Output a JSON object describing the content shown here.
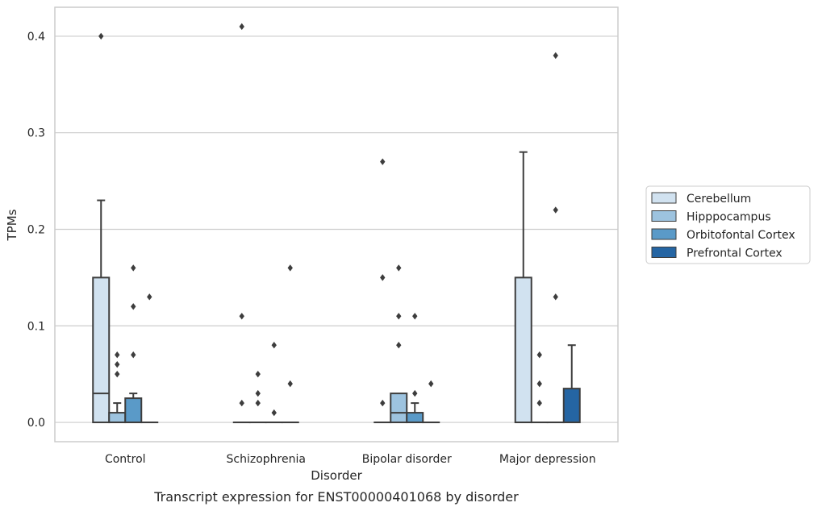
{
  "caption": "Transcript expression for ENST00000401068 by disorder",
  "chart_data": {
    "type": "box",
    "title": "",
    "xlabel": "Disorder",
    "ylabel": "TPMs",
    "ylim": [
      -0.02,
      0.43
    ],
    "yticks": [
      0.0,
      0.1,
      0.2,
      0.3,
      0.4
    ],
    "ytick_labels": [
      "0.0",
      "0.1",
      "0.2",
      "0.3",
      "0.4"
    ],
    "grid": "horizontal",
    "legend_position": "right",
    "categories": [
      "Control",
      "Schizophrenia",
      "Bipolar disorder",
      "Major depression"
    ],
    "series": [
      {
        "name": "Cerebellum",
        "color": "#d1e2f0",
        "boxes": [
          {
            "q1": 0.0,
            "median": 0.03,
            "q3": 0.15,
            "whisker_low": 0.0,
            "whisker_high": 0.23,
            "outliers": [
              0.4
            ]
          },
          {
            "q1": 0.0,
            "median": 0.0,
            "q3": 0.0,
            "whisker_low": 0.0,
            "whisker_high": 0.0,
            "outliers": [
              0.41,
              0.11,
              0.02
            ]
          },
          {
            "q1": 0.0,
            "median": 0.0,
            "q3": 0.0,
            "whisker_low": 0.0,
            "whisker_high": 0.0,
            "outliers": [
              0.27,
              0.15,
              0.02
            ]
          },
          {
            "q1": 0.0,
            "median": 0.0,
            "q3": 0.15,
            "whisker_low": 0.0,
            "whisker_high": 0.28,
            "outliers": []
          }
        ]
      },
      {
        "name": "Hipppocampus",
        "color": "#9dc3df",
        "boxes": [
          {
            "q1": 0.0,
            "median": 0.0,
            "q3": 0.01,
            "whisker_low": 0.0,
            "whisker_high": 0.02,
            "outliers": [
              0.07,
              0.06,
              0.05
            ]
          },
          {
            "q1": 0.0,
            "median": 0.0,
            "q3": 0.0,
            "whisker_low": 0.0,
            "whisker_high": 0.0,
            "outliers": [
              0.05,
              0.03,
              0.02
            ]
          },
          {
            "q1": 0.0,
            "median": 0.01,
            "q3": 0.03,
            "whisker_low": 0.0,
            "whisker_high": 0.03,
            "outliers": [
              0.16,
              0.11,
              0.08
            ]
          },
          {
            "q1": 0.0,
            "median": 0.0,
            "q3": 0.0,
            "whisker_low": 0.0,
            "whisker_high": 0.0,
            "outliers": [
              0.07,
              0.04,
              0.02
            ]
          }
        ]
      },
      {
        "name": "Orbitofontal Cortex",
        "color": "#5a9ac8",
        "boxes": [
          {
            "q1": 0.0,
            "median": 0.0,
            "q3": 0.025,
            "whisker_low": 0.0,
            "whisker_high": 0.03,
            "outliers": [
              0.16,
              0.12,
              0.07
            ]
          },
          {
            "q1": 0.0,
            "median": 0.0,
            "q3": 0.0,
            "whisker_low": 0.0,
            "whisker_high": 0.0,
            "outliers": [
              0.08,
              0.01
            ]
          },
          {
            "q1": 0.0,
            "median": 0.0,
            "q3": 0.01,
            "whisker_low": 0.0,
            "whisker_high": 0.02,
            "outliers": [
              0.11,
              0.03
            ]
          },
          {
            "q1": 0.0,
            "median": 0.0,
            "q3": 0.0,
            "whisker_low": 0.0,
            "whisker_high": 0.0,
            "outliers": [
              0.38,
              0.22,
              0.13
            ]
          }
        ]
      },
      {
        "name": "Prefrontal Cortex",
        "color": "#2565a3",
        "boxes": [
          {
            "q1": 0.0,
            "median": 0.0,
            "q3": 0.0,
            "whisker_low": 0.0,
            "whisker_high": 0.0,
            "outliers": [
              0.13
            ]
          },
          {
            "q1": 0.0,
            "median": 0.0,
            "q3": 0.0,
            "whisker_low": 0.0,
            "whisker_high": 0.0,
            "outliers": [
              0.16,
              0.04
            ]
          },
          {
            "q1": 0.0,
            "median": 0.0,
            "q3": 0.0,
            "whisker_low": 0.0,
            "whisker_high": 0.0,
            "outliers": [
              0.04
            ]
          },
          {
            "q1": 0.0,
            "median": 0.0,
            "q3": 0.035,
            "whisker_low": 0.0,
            "whisker_high": 0.08,
            "outliers": []
          }
        ]
      }
    ]
  }
}
